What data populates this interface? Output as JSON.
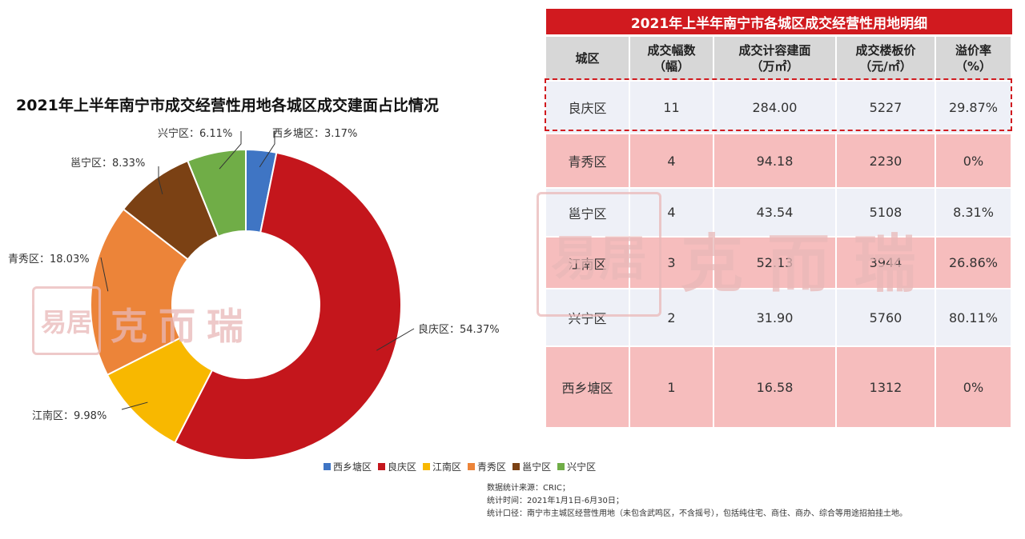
{
  "chart_data": {
    "type": "pie",
    "title": "2021年上半年南宁市成交经营性用地各城区成交建面占比情况",
    "slices": [
      {
        "label": "西乡塘区",
        "value": 3.17,
        "display": "西乡塘区：3.17%",
        "color": "#3f75c4"
      },
      {
        "label": "良庆区",
        "value": 54.37,
        "display": "良庆区：54.37%",
        "color": "#c4161c"
      },
      {
        "label": "江南区",
        "value": 9.98,
        "display": "江南区：9.98%",
        "color": "#f8b800"
      },
      {
        "label": "青秀区",
        "value": 18.03,
        "display": "青秀区：18.03%",
        "color": "#ec8439"
      },
      {
        "label": "邕宁区",
        "value": 8.33,
        "display": "邕宁区：8.33%",
        "color": "#7b4114"
      },
      {
        "label": "兴宁区",
        "value": 6.11,
        "display": "兴宁区：6.11%",
        "color": "#70ad47"
      }
    ],
    "legend_position": "bottom"
  },
  "table": {
    "title": "2021年上半年南宁市各城区成交经营性用地明细",
    "headers": [
      [
        "城区"
      ],
      [
        "成交幅数",
        "（幅）"
      ],
      [
        "成交计容建面",
        "（万㎡）"
      ],
      [
        "成交楼板价",
        "（元/㎡）"
      ],
      [
        "溢价率",
        "（%）"
      ]
    ],
    "rows": [
      [
        "良庆区",
        "11",
        "284.00",
        "5227",
        "29.87%"
      ],
      [
        "青秀区",
        "4",
        "94.18",
        "2230",
        "0%"
      ],
      [
        "邕宁区",
        "4",
        "43.54",
        "5108",
        "8.31%"
      ],
      [
        "江南区",
        "3",
        "52.13",
        "3944",
        "26.86%"
      ],
      [
        "兴宁区",
        "2",
        "31.90",
        "5760",
        "80.11%"
      ],
      [
        "西乡塘区",
        "1",
        "16.58",
        "1312",
        "0%"
      ]
    ]
  },
  "watermark": {
    "text": "克而瑞",
    "logo": "易居"
  },
  "source_lines": [
    "数据统计来源：CRIC；",
    "统计时间：2021年1月1日-6月30日；",
    "统计口径：南宁市主城区经营性用地（未包含武鸣区，不含摇号），包括纯住宅、商住、商办、综合等用途招拍挂土地。"
  ]
}
